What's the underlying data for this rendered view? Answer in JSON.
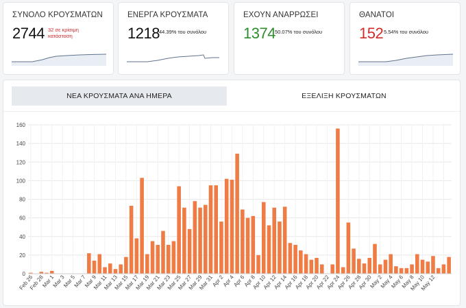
{
  "cards": [
    {
      "title": "ΣΥΝΟΛΟ ΚΡΟΥΣΜΑΤΩΝ",
      "value": "2744",
      "note": "32 σε κρίσιμη κατάσταση",
      "note_line1": "32 σε κρίσιμη",
      "note_line2": "κατάσταση",
      "value_color": "#111111",
      "note_color": "#d32a2a"
    },
    {
      "title": "ΕΝΕΡΓΑ ΚΡΟΥΣΜΑΤΑ",
      "value": "1218",
      "note": "44.39% του συνόλου",
      "value_color": "#111111"
    },
    {
      "title": "ΕΧΟΥΝ ΑΝΑΡΡΩΣΕΙ",
      "value": "1374",
      "note": "50.07% του συνόλου",
      "value_color": "#2e8b2e"
    },
    {
      "title": "ΘΑΝΑΤΟΙ",
      "value": "152",
      "note": "5.54% του συνόλου",
      "value_color": "#d32a2a"
    }
  ],
  "tabs": [
    {
      "label": "ΝΕΑ ΚΡΟΥΣΜΑΤΑ ΑΝΑ ΗΜΕΡΑ",
      "active": true
    },
    {
      "label": "ΕΞΕΛΙΞΗ ΚΡΟΥΣΜΑΤΩΝ",
      "active": false
    }
  ],
  "colors": {
    "bar": "#ef7b45",
    "sparkline": "#5f738c",
    "sparkfill": "#e9eef4",
    "grid": "#e8e8e8"
  },
  "chart_data": {
    "type": "bar",
    "title": "",
    "xlabel": "",
    "ylabel": "",
    "ylim": [
      0,
      160
    ],
    "yticks": [
      0,
      20,
      40,
      60,
      80,
      100,
      120,
      140,
      160
    ],
    "grid": true,
    "tick_labels": [
      "Feb 26",
      "Feb 28",
      "Mar 1",
      "Mar 3",
      "Mar 5",
      "Mar 7",
      "Mar 9",
      "Mar 11",
      "Mar 13",
      "Mar 15",
      "Mar 17",
      "Mar 19",
      "Mar 21",
      "Mar 23",
      "Mar 25",
      "Mar 27",
      "Mar 29",
      "Mar 31",
      "Apr 2",
      "Apr 4",
      "Apr 6",
      "Apr 8",
      "Apr 10",
      "Apr 12",
      "Apr 14",
      "Apr 16",
      "Apr 18",
      "Apr 20",
      "Apr 22",
      "Apr 24",
      "Apr 26",
      "Apr 28",
      "Apr 30",
      "May 2",
      "May 4",
      "May 6",
      "May 8",
      "May 10",
      "May 12"
    ],
    "values": [
      1,
      0,
      2,
      1,
      3,
      0,
      0,
      0,
      0,
      0,
      0,
      22,
      14,
      21,
      7,
      11,
      5,
      10,
      18,
      73,
      38,
      103,
      21,
      35,
      31,
      46,
      31,
      35,
      94,
      71,
      48,
      78,
      71,
      74,
      95,
      95,
      56,
      102,
      101,
      129,
      69,
      60,
      62,
      20,
      77,
      52,
      71,
      56,
      72,
      33,
      31,
      25,
      21,
      15,
      17,
      10,
      0,
      10,
      156,
      7,
      55,
      27,
      16,
      11,
      17,
      32,
      10,
      15,
      21,
      8,
      6,
      6,
      10,
      21,
      15,
      13,
      19,
      6,
      10,
      18
    ]
  }
}
